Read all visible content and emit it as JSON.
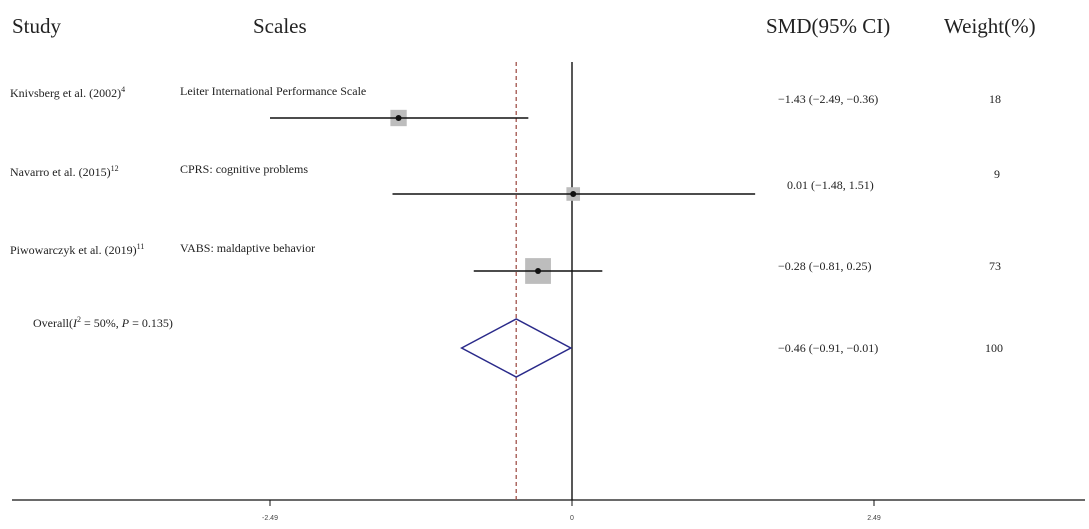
{
  "headers": {
    "study": "Study",
    "scales": "Scales",
    "smd": "SMD(95% CI)",
    "weight": "Weight(%)"
  },
  "studies": [
    {
      "study": "Knivsberg et al. (2002)",
      "ref": "4",
      "scale": "Leiter International Performance Scale",
      "ci_text": "−1.43 (−2.49, −0.36)",
      "weight_text": "18"
    },
    {
      "study": "Navarro et al. (2015)",
      "ref": "12",
      "scale": "CPRS: cognitive problems",
      "ci_text": "0.01 (−1.48, 1.51)",
      "weight_text": "9"
    },
    {
      "study": "Piwowarczyk et al. (2019)",
      "ref": "11",
      "scale": "VABS: maldaptive behavior",
      "ci_text": "−0.28 (−0.81, 0.25)",
      "weight_text": "73"
    }
  ],
  "overall": {
    "label_prefix": "Overall(",
    "i_letter": "I",
    "i_sup": "2",
    "label_mid": " = 50%, ",
    "p_letter": "P",
    "label_end": " = 0.135)",
    "ci_text": "−0.46 (−0.91, −0.01)",
    "weight_text": "100"
  },
  "chart_data": {
    "type": "forest",
    "xlim": [
      -3.7,
      4.1
    ],
    "ticks": [
      -2.49,
      0,
      2.49
    ],
    "tick_labels": [
      "-2.49",
      "0",
      "2.49"
    ],
    "reference_line": 0,
    "overall_line": -0.46,
    "studies": [
      {
        "name": "Knivsberg et al. (2002)",
        "smd": -1.43,
        "lower": -2.49,
        "upper": -0.36,
        "weight": 18
      },
      {
        "name": "Navarro et al. (2015)",
        "smd": 0.01,
        "lower": -1.48,
        "upper": 1.51,
        "weight": 9
      },
      {
        "name": "Piwowarczyk et al. (2019)",
        "smd": -0.28,
        "lower": -0.81,
        "upper": 0.25,
        "weight": 73
      }
    ],
    "overall": {
      "smd": -0.46,
      "lower": -0.91,
      "upper": -0.01,
      "weight": 100
    },
    "colors": {
      "ci_line": "#111111",
      "box": "#bdbdbd",
      "point": "#111111",
      "diamond": "#2a2a8a",
      "overall_line": "#a0524a",
      "axis": "#111111"
    }
  }
}
